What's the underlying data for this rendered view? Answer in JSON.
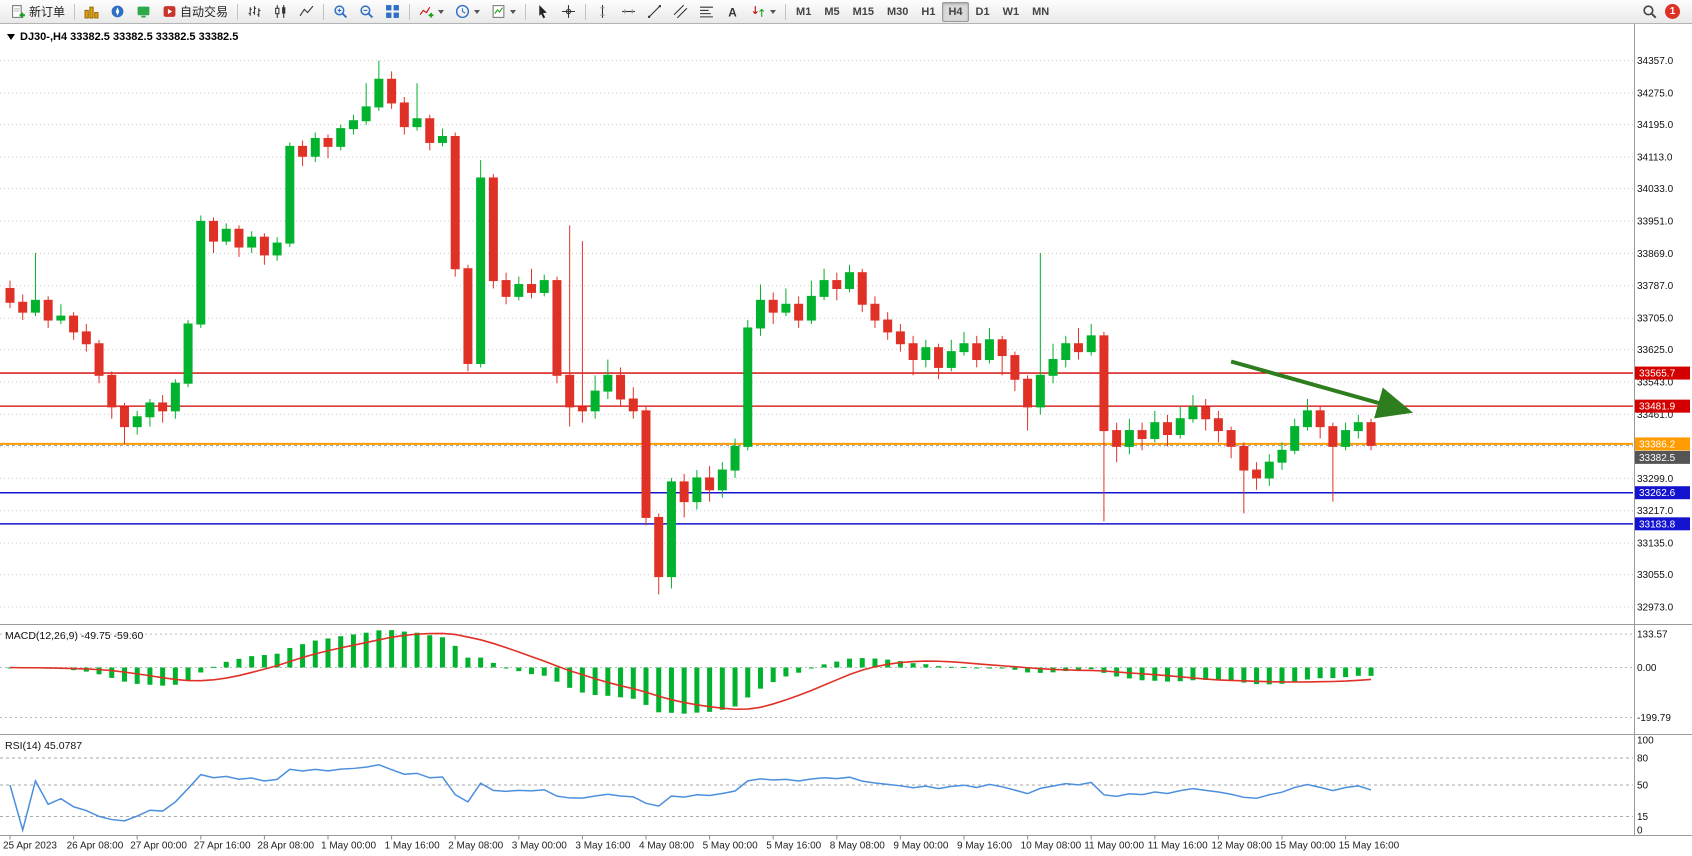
{
  "toolbar": {
    "new_order_label": "新订单",
    "autotrade_label": "自动交易",
    "text_tool_glyph": "A",
    "timeframes": [
      "M1",
      "M5",
      "M15",
      "M30",
      "H1",
      "H4",
      "D1",
      "W1",
      "MN"
    ],
    "active_timeframe": "H4",
    "notification_count": "1"
  },
  "chart": {
    "header": "DJ30-,H4 33382.5 33382.5 33382.5 33382.5"
  },
  "chart_data": {
    "type": "candlestick",
    "symbol": "DJ30-",
    "timeframe": "H4",
    "bid": 33382.5,
    "bid_label": "33382.5",
    "price_range": {
      "top": 34450,
      "bottom": 32930
    },
    "y_ticks": [
      34357,
      34275,
      34195,
      34113,
      34033,
      33951,
      33869,
      33787,
      33705,
      33625,
      33543,
      33461,
      33299,
      33217,
      33135,
      33055,
      32973
    ],
    "hidden_grid_ticks": [
      33379
    ],
    "time_labels": [
      "25 Apr 2023",
      "26 Apr 08:00",
      "27 Apr 00:00",
      "27 Apr 16:00",
      "28 Apr 08:00",
      "1 May 00:00",
      "1 May 16:00",
      "2 May 08:00",
      "3 May 00:00",
      "3 May 16:00",
      "4 May 08:00",
      "5 May 00:00",
      "5 May 16:00",
      "8 May 08:00",
      "9 May 00:00",
      "9 May 16:00",
      "10 May 08:00",
      "11 May 00:00",
      "11 May 16:00",
      "12 May 08:00",
      "15 May 00:00",
      "15 May 16:00"
    ],
    "label_every": 5,
    "candles": [
      [
        33780,
        33800,
        33730,
        33745
      ],
      [
        33745,
        33765,
        33700,
        33720
      ],
      [
        33720,
        33870,
        33710,
        33750
      ],
      [
        33750,
        33760,
        33680,
        33700
      ],
      [
        33700,
        33740,
        33690,
        33710
      ],
      [
        33710,
        33720,
        33650,
        33670
      ],
      [
        33670,
        33690,
        33620,
        33640
      ],
      [
        33640,
        33650,
        33540,
        33560
      ],
      [
        33560,
        33570,
        33450,
        33480
      ],
      [
        33480,
        33490,
        33385,
        33430
      ],
      [
        33430,
        33470,
        33410,
        33455
      ],
      [
        33455,
        33500,
        33430,
        33490
      ],
      [
        33490,
        33510,
        33440,
        33470
      ],
      [
        33470,
        33550,
        33450,
        33540
      ],
      [
        33540,
        33700,
        33530,
        33690
      ],
      [
        33690,
        33965,
        33680,
        33950
      ],
      [
        33950,
        33960,
        33870,
        33900
      ],
      [
        33900,
        33945,
        33890,
        33930
      ],
      [
        33930,
        33940,
        33860,
        33885
      ],
      [
        33885,
        33925,
        33870,
        33910
      ],
      [
        33910,
        33920,
        33840,
        33865
      ],
      [
        33865,
        33910,
        33850,
        33895
      ],
      [
        33895,
        34150,
        33885,
        34140
      ],
      [
        34140,
        34155,
        34090,
        34115
      ],
      [
        34115,
        34175,
        34100,
        34160
      ],
      [
        34160,
        34170,
        34110,
        34140
      ],
      [
        34140,
        34195,
        34130,
        34185
      ],
      [
        34185,
        34220,
        34170,
        34205
      ],
      [
        34205,
        34300,
        34195,
        34240
      ],
      [
        34240,
        34357,
        34230,
        34310
      ],
      [
        34310,
        34330,
        34235,
        34250
      ],
      [
        34250,
        34265,
        34170,
        34190
      ],
      [
        34190,
        34300,
        34180,
        34210
      ],
      [
        34210,
        34220,
        34130,
        34150
      ],
      [
        34150,
        34185,
        34140,
        34165
      ],
      [
        34165,
        34175,
        33810,
        33830
      ],
      [
        33830,
        33840,
        33570,
        33590
      ],
      [
        33590,
        34105,
        33580,
        34060
      ],
      [
        34060,
        34070,
        33780,
        33800
      ],
      [
        33800,
        33820,
        33740,
        33760
      ],
      [
        33760,
        33810,
        33750,
        33790
      ],
      [
        33790,
        33830,
        33755,
        33770
      ],
      [
        33770,
        33815,
        33760,
        33800
      ],
      [
        33800,
        33810,
        33540,
        33560
      ],
      [
        33560,
        33940,
        33430,
        33480
      ],
      [
        33480,
        33900,
        33440,
        33470
      ],
      [
        33470,
        33560,
        33450,
        33520
      ],
      [
        33520,
        33600,
        33500,
        33560
      ],
      [
        33560,
        33580,
        33480,
        33500
      ],
      [
        33500,
        33530,
        33450,
        33470
      ],
      [
        33470,
        33480,
        33180,
        33200
      ],
      [
        33200,
        33210,
        33005,
        33050
      ],
      [
        33050,
        33300,
        33020,
        33290
      ],
      [
        33290,
        33310,
        33200,
        33240
      ],
      [
        33240,
        33320,
        33220,
        33300
      ],
      [
        33300,
        33330,
        33240,
        33270
      ],
      [
        33270,
        33340,
        33250,
        33320
      ],
      [
        33320,
        33400,
        33300,
        33380
      ],
      [
        33380,
        33700,
        33370,
        33680
      ],
      [
        33680,
        33790,
        33660,
        33750
      ],
      [
        33750,
        33770,
        33690,
        33720
      ],
      [
        33720,
        33780,
        33710,
        33740
      ],
      [
        33740,
        33760,
        33680,
        33700
      ],
      [
        33700,
        33800,
        33690,
        33760
      ],
      [
        33760,
        33830,
        33750,
        33800
      ],
      [
        33800,
        33820,
        33750,
        33780
      ],
      [
        33780,
        33840,
        33770,
        33820
      ],
      [
        33820,
        33830,
        33720,
        33740
      ],
      [
        33740,
        33760,
        33680,
        33700
      ],
      [
        33700,
        33720,
        33650,
        33670
      ],
      [
        33670,
        33690,
        33620,
        33640
      ],
      [
        33640,
        33660,
        33560,
        33600
      ],
      [
        33600,
        33650,
        33580,
        33630
      ],
      [
        33630,
        33640,
        33550,
        33580
      ],
      [
        33580,
        33650,
        33570,
        33620
      ],
      [
        33620,
        33670,
        33610,
        33640
      ],
      [
        33640,
        33660,
        33580,
        33600
      ],
      [
        33600,
        33680,
        33590,
        33650
      ],
      [
        33650,
        33660,
        33560,
        33610
      ],
      [
        33610,
        33620,
        33520,
        33550
      ],
      [
        33550,
        33560,
        33420,
        33480
      ],
      [
        33480,
        33870,
        33460,
        33560
      ],
      [
        33560,
        33640,
        33540,
        33600
      ],
      [
        33600,
        33660,
        33580,
        33640
      ],
      [
        33640,
        33680,
        33600,
        33620
      ],
      [
        33620,
        33690,
        33610,
        33660
      ],
      [
        33660,
        33670,
        33190,
        33420
      ],
      [
        33420,
        33440,
        33340,
        33380
      ],
      [
        33380,
        33450,
        33360,
        33420
      ],
      [
        33420,
        33440,
        33370,
        33400
      ],
      [
        33400,
        33470,
        33390,
        33440
      ],
      [
        33440,
        33460,
        33380,
        33410
      ],
      [
        33410,
        33480,
        33400,
        33450
      ],
      [
        33450,
        33510,
        33440,
        33480
      ],
      [
        33480,
        33500,
        33420,
        33450
      ],
      [
        33450,
        33470,
        33390,
        33420
      ],
      [
        33420,
        33430,
        33350,
        33380
      ],
      [
        33380,
        33390,
        33210,
        33320
      ],
      [
        33320,
        33340,
        33270,
        33300
      ],
      [
        33300,
        33360,
        33280,
        33340
      ],
      [
        33340,
        33390,
        33320,
        33370
      ],
      [
        33370,
        33450,
        33360,
        33430
      ],
      [
        33430,
        33500,
        33420,
        33470
      ],
      [
        33470,
        33480,
        33400,
        33430
      ],
      [
        33430,
        33440,
        33240,
        33380
      ],
      [
        33380,
        33440,
        33370,
        33420
      ],
      [
        33420,
        33460,
        33400,
        33440
      ],
      [
        33440,
        33450,
        33370,
        33382.5
      ]
    ],
    "hlines": [
      {
        "price": 33565.7,
        "color": "#D40000",
        "label": "33565.7",
        "width": 1.3
      },
      {
        "price": 33481.9,
        "color": "#D40000",
        "label": "33481.9",
        "width": 1.3
      },
      {
        "price": 33386.2,
        "color": "#FF9C00",
        "label": "33386.2",
        "width": 2
      },
      {
        "price": 33262.6,
        "color": "#1414D0",
        "label": "33262.6",
        "width": 1.5
      },
      {
        "price": 33183.8,
        "color": "#1414D0",
        "label": "33183.8",
        "width": 1.5
      }
    ],
    "annotation_arrow": {
      "from_index": 96,
      "from_price": 33595,
      "to_index": 110,
      "to_price": 33468,
      "color": "#2E7D1F"
    },
    "indicators": {
      "macd": {
        "label": "MACD(12,26,9) -49.75 -59.60",
        "params": [
          12,
          26,
          9
        ],
        "main_value": -49.75,
        "signal_value": -59.6,
        "ticks": [
          133.57,
          0,
          -199.79
        ],
        "range": {
          "max": 150,
          "min": -250
        },
        "histogram_color": "#00B22D",
        "signal_color": "#E03127"
      },
      "rsi": {
        "label": "RSI(14) 45.0787",
        "period": 14,
        "value": 45.0787,
        "ticks": [
          100,
          80,
          50,
          15,
          0
        ],
        "levels": [
          80,
          50,
          15
        ],
        "line_color": "#4C8FDE"
      }
    },
    "colors": {
      "up": "#00B22D",
      "down": "#E03127",
      "grid": "#CCCCCC",
      "bid_box": "#555555",
      "red_line": "#D40000",
      "blue_line": "#1414D0",
      "orange_line": "#FF9C00"
    }
  }
}
